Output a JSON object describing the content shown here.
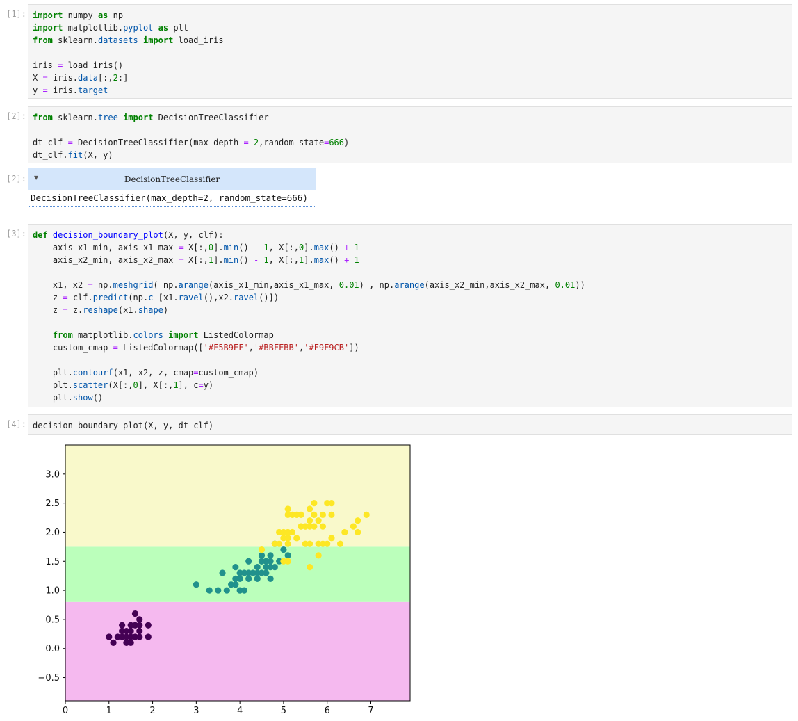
{
  "cells": [
    {
      "prompt": "[1]:",
      "lines": [
        "import numpy as np",
        "import matplotlib.pyplot as plt",
        "from sklearn.datasets import load_iris",
        "",
        "iris = load_iris()",
        "X = iris.data[:,2:]",
        "y = iris.target"
      ]
    },
    {
      "prompt": "[2]:",
      "lines": [
        "from sklearn.tree import DecisionTreeClassifier",
        "",
        "dt_clf = DecisionTreeClassifier(max_depth = 2,random_state=666)",
        "dt_clf.fit(X, y)"
      ]
    },
    {
      "prompt": "[3]:",
      "lines": [
        "def decision_boundary_plot(X, y, clf):",
        "    axis_x1_min, axis_x1_max = X[:,0].min() - 1, X[:,0].max() + 1",
        "    axis_x2_min, axis_x2_max = X[:,1].min() - 1, X[:,1].max() + 1",
        "",
        "    x1, x2 = np.meshgrid( np.arange(axis_x1_min,axis_x1_max, 0.01) , np.arange(axis_x2_min,axis_x2_max, 0.01))",
        "    z = clf.predict(np.c_[x1.ravel(),x2.ravel()])",
        "    z = z.reshape(x1.shape)",
        "",
        "    from matplotlib.colors import ListedColormap",
        "    custom_cmap = ListedColormap(['#F5B9EF','#BBFFBB','#F9F9CB'])",
        "",
        "    plt.contourf(x1, x2, z, cmap=custom_cmap)",
        "    plt.scatter(X[:,0], X[:,1], c=y)",
        "    plt.show()"
      ]
    },
    {
      "prompt": "[4]:",
      "lines": [
        "decision_boundary_plot(X, y, dt_clf)"
      ]
    }
  ],
  "output_2": {
    "prompt": "[2]:",
    "toggle_icon": "triangle-down-icon",
    "header": "DecisionTreeClassifier",
    "repr": "DecisionTreeClassifier(max_depth=2, random_state=666)"
  },
  "chart_data": {
    "type": "scatter",
    "title": "",
    "xlabel": "",
    "ylabel": "",
    "xlim": [
      0,
      7.9
    ],
    "ylim": [
      -0.9,
      3.5
    ],
    "xticks": [
      "0",
      "1",
      "2",
      "3",
      "4",
      "5",
      "6",
      "7"
    ],
    "yticks": [
      "−0.5",
      "0.0",
      "0.5",
      "1.0",
      "1.5",
      "2.0",
      "2.5",
      "3.0"
    ],
    "ytick_values": [
      -0.5,
      0.0,
      0.5,
      1.0,
      1.5,
      2.0,
      2.5,
      3.0
    ],
    "regions": [
      {
        "class": 0,
        "y_from": -0.9,
        "y_to": 0.8,
        "color": "#F5B9EF"
      },
      {
        "class": 1,
        "y_from": 0.8,
        "y_to": 1.75,
        "color": "#BBFFBB"
      },
      {
        "class": 2,
        "y_from": 1.75,
        "y_to": 3.5,
        "color": "#F9F9CB"
      }
    ],
    "series": [
      {
        "color": "#440154",
        "points": [
          [
            1.0,
            0.2
          ],
          [
            1.1,
            0.1
          ],
          [
            1.2,
            0.2
          ],
          [
            1.3,
            0.2
          ],
          [
            1.3,
            0.3
          ],
          [
            1.3,
            0.4
          ],
          [
            1.4,
            0.1
          ],
          [
            1.4,
            0.2
          ],
          [
            1.4,
            0.3
          ],
          [
            1.5,
            0.1
          ],
          [
            1.5,
            0.2
          ],
          [
            1.5,
            0.3
          ],
          [
            1.5,
            0.4
          ],
          [
            1.6,
            0.2
          ],
          [
            1.6,
            0.4
          ],
          [
            1.6,
            0.6
          ],
          [
            1.7,
            0.2
          ],
          [
            1.7,
            0.3
          ],
          [
            1.7,
            0.4
          ],
          [
            1.7,
            0.5
          ],
          [
            1.9,
            0.2
          ],
          [
            1.9,
            0.4
          ]
        ]
      },
      {
        "color": "#21918c",
        "points": [
          [
            3.0,
            1.1
          ],
          [
            3.3,
            1.0
          ],
          [
            3.5,
            1.0
          ],
          [
            3.6,
            1.3
          ],
          [
            3.7,
            1.0
          ],
          [
            3.8,
            1.1
          ],
          [
            3.9,
            1.1
          ],
          [
            3.9,
            1.2
          ],
          [
            3.9,
            1.4
          ],
          [
            4.0,
            1.0
          ],
          [
            4.0,
            1.2
          ],
          [
            4.0,
            1.3
          ],
          [
            4.1,
            1.0
          ],
          [
            4.1,
            1.3
          ],
          [
            4.2,
            1.2
          ],
          [
            4.2,
            1.3
          ],
          [
            4.2,
            1.5
          ],
          [
            4.3,
            1.3
          ],
          [
            4.4,
            1.2
          ],
          [
            4.4,
            1.3
          ],
          [
            4.4,
            1.4
          ],
          [
            4.5,
            1.3
          ],
          [
            4.5,
            1.5
          ],
          [
            4.6,
            1.3
          ],
          [
            4.6,
            1.4
          ],
          [
            4.6,
            1.5
          ],
          [
            4.7,
            1.2
          ],
          [
            4.7,
            1.4
          ],
          [
            4.7,
            1.5
          ],
          [
            4.8,
            1.4
          ],
          [
            4.8,
            1.8
          ],
          [
            4.9,
            1.5
          ],
          [
            5.0,
            1.7
          ],
          [
            5.1,
            1.6
          ],
          [
            4.5,
            1.6
          ],
          [
            4.7,
            1.6
          ],
          [
            4.5,
            1.5
          ]
        ]
      },
      {
        "color": "#fde725",
        "points": [
          [
            4.5,
            1.7
          ],
          [
            4.8,
            1.8
          ],
          [
            4.9,
            1.8
          ],
          [
            4.9,
            2.0
          ],
          [
            5.0,
            1.5
          ],
          [
            5.0,
            1.9
          ],
          [
            5.0,
            2.0
          ],
          [
            5.1,
            1.5
          ],
          [
            5.1,
            1.8
          ],
          [
            5.1,
            1.9
          ],
          [
            5.1,
            2.0
          ],
          [
            5.1,
            2.3
          ],
          [
            5.1,
            2.4
          ],
          [
            5.2,
            2.0
          ],
          [
            5.2,
            2.3
          ],
          [
            5.3,
            1.9
          ],
          [
            5.3,
            2.3
          ],
          [
            5.4,
            2.1
          ],
          [
            5.4,
            2.3
          ],
          [
            5.5,
            1.8
          ],
          [
            5.5,
            2.1
          ],
          [
            5.6,
            1.4
          ],
          [
            5.6,
            1.8
          ],
          [
            5.6,
            2.1
          ],
          [
            5.6,
            2.2
          ],
          [
            5.6,
            2.4
          ],
          [
            5.7,
            2.1
          ],
          [
            5.7,
            2.3
          ],
          [
            5.7,
            2.5
          ],
          [
            5.8,
            1.6
          ],
          [
            5.8,
            1.8
          ],
          [
            5.8,
            2.2
          ],
          [
            5.9,
            2.1
          ],
          [
            5.9,
            2.3
          ],
          [
            6.0,
            1.8
          ],
          [
            6.0,
            2.5
          ],
          [
            6.1,
            1.9
          ],
          [
            6.1,
            2.3
          ],
          [
            6.1,
            2.5
          ],
          [
            6.3,
            1.8
          ],
          [
            6.4,
            2.0
          ],
          [
            6.6,
            2.1
          ],
          [
            6.7,
            2.0
          ],
          [
            6.7,
            2.2
          ],
          [
            6.9,
            2.3
          ],
          [
            5.1,
            1.9
          ],
          [
            5.4,
            2.1
          ],
          [
            5.5,
            2.1
          ],
          [
            5.9,
            1.8
          ]
        ]
      }
    ]
  }
}
